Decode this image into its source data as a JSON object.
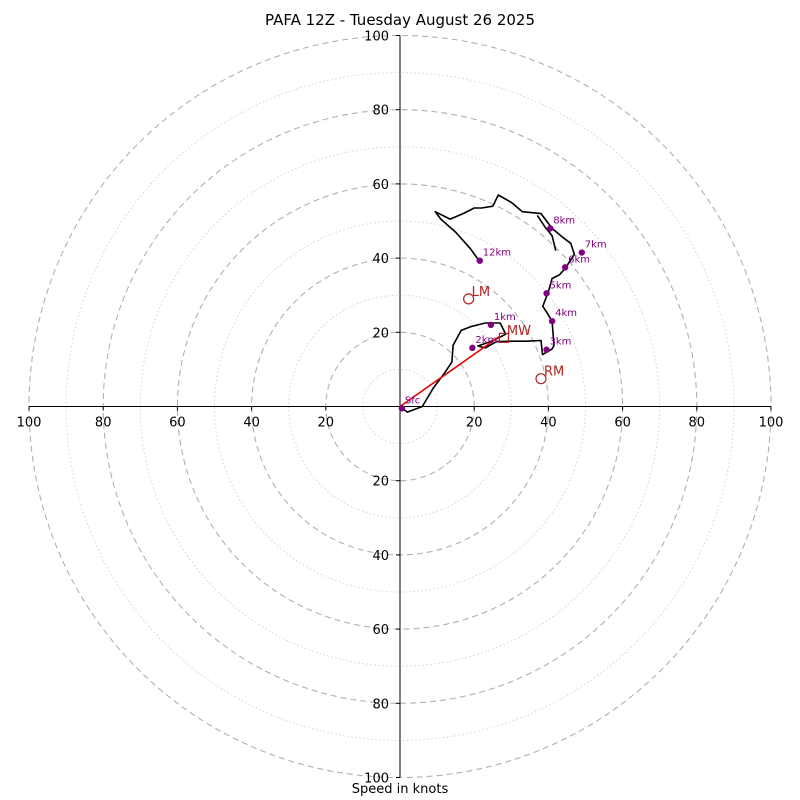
{
  "chart_data": {
    "type": "hodograph",
    "title": "PAFA 12Z - Tuesday August 26 2025",
    "xlabel": "Speed in knots",
    "max_speed": 100,
    "ring_major_step": 20,
    "ring_minor_step": 10,
    "axis_ticks_x": [
      "100",
      "80",
      "60",
      "40",
      "20",
      "20",
      "40",
      "60",
      "80",
      "100"
    ],
    "axis_ticks_y": [
      "100",
      "80",
      "60",
      "40",
      "20",
      "20",
      "40",
      "60",
      "80",
      "100"
    ],
    "grid": true,
    "colors": {
      "trace": "#000000",
      "markers": "#800080",
      "motion": "#b22222",
      "bulk": "#e00000",
      "grid": "#bbbbbb"
    },
    "trace_uv": [
      [
        0,
        0
      ],
      [
        2,
        -1.5
      ],
      [
        6,
        0
      ],
      [
        9,
        5
      ],
      [
        12,
        9
      ],
      [
        14,
        12
      ],
      [
        14.3,
        16.5
      ],
      [
        16.5,
        20.5
      ],
      [
        19,
        21.5
      ],
      [
        23,
        22.5
      ],
      [
        27,
        22.5
      ],
      [
        28.5,
        19.5
      ],
      [
        25,
        17.7
      ],
      [
        21,
        16.3
      ],
      [
        23,
        15.8
      ],
      [
        26,
        17.5
      ],
      [
        31,
        17.6
      ],
      [
        34,
        17.6
      ],
      [
        38,
        17.8
      ],
      [
        38.4,
        14
      ],
      [
        41,
        15.5
      ],
      [
        41.5,
        16.5
      ],
      [
        41,
        23
      ],
      [
        39.5,
        25.5
      ],
      [
        38.5,
        27
      ],
      [
        40,
        31
      ],
      [
        41,
        34.5
      ],
      [
        43,
        35.5
      ],
      [
        44.5,
        37.2
      ],
      [
        47,
        41
      ],
      [
        46,
        44
      ],
      [
        44,
        45.5
      ],
      [
        41,
        48
      ],
      [
        38,
        52
      ],
      [
        33,
        52.5
      ],
      [
        30,
        55
      ],
      [
        26.5,
        57
      ],
      [
        25,
        54
      ],
      [
        22,
        53.5
      ],
      [
        20,
        53.5
      ],
      [
        17,
        52
      ],
      [
        13.5,
        50.5
      ],
      [
        9.5,
        52.5
      ],
      [
        11,
        50.5
      ],
      [
        15,
        47
      ],
      [
        19,
        42.5
      ],
      [
        21.5,
        39
      ]
    ],
    "trace_tail_uv": [
      [
        42,
        42
      ],
      [
        41,
        46
      ],
      [
        39,
        48.5
      ],
      [
        37,
        51.5
      ]
    ],
    "height_markers": [
      {
        "label": "Sfc",
        "u": 0.5,
        "v": -0.5
      },
      {
        "label": "1km",
        "u": 24.5,
        "v": 22
      },
      {
        "label": "2km",
        "u": 19.5,
        "v": 15.8
      },
      {
        "label": "3km",
        "u": 39.5,
        "v": 15.3
      },
      {
        "label": "4km",
        "u": 41,
        "v": 23
      },
      {
        "label": "5km",
        "u": 39.5,
        "v": 30.5
      },
      {
        "label": "6km",
        "u": 44.5,
        "v": 37.5
      },
      {
        "label": "7km",
        "u": 49,
        "v": 41.5
      },
      {
        "label": "8km",
        "u": 40.5,
        "v": 48
      },
      {
        "label": "12km",
        "u": 21.5,
        "v": 39.3
      }
    ],
    "storm_motion": [
      {
        "label": "LM",
        "u": 18.5,
        "v": 29,
        "marker": "circle"
      },
      {
        "label": "RM",
        "u": 38,
        "v": 7.5,
        "marker": "circle"
      },
      {
        "label": "MW",
        "u": 28,
        "v": 18.5,
        "marker": "square"
      }
    ],
    "bulk_shear_line": [
      [
        0,
        0
      ],
      [
        27,
        19
      ]
    ]
  }
}
